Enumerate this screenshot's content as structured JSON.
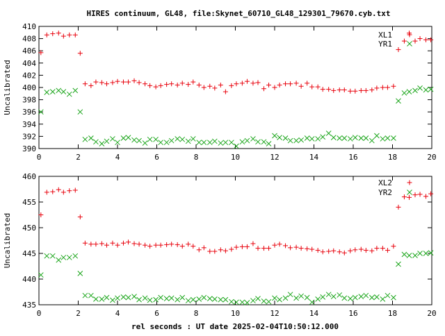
{
  "title": "HIRES continuum, GL48, file:Skynet_60710_GL48_129301_79670.cyb.txt",
  "xlabel": "rel seconds : UT date 2025-02-04T10:50:12.000",
  "colors": {
    "red": "#e8000b",
    "green": "#1aa51a",
    "axis": "#000000"
  },
  "chart_data": [
    {
      "type": "scatter",
      "ylabel": "Uncalibrated",
      "xlim": [
        0,
        20
      ],
      "ylim": [
        390,
        410
      ],
      "xticks": [
        0,
        2,
        4,
        6,
        8,
        10,
        12,
        14,
        16,
        18,
        20
      ],
      "yticks": [
        390,
        392,
        394,
        396,
        398,
        400,
        402,
        404,
        406,
        408,
        410
      ],
      "legend_position": "top-right",
      "series": [
        {
          "name": "XL1",
          "marker": "plus",
          "color": "#e8000b",
          "x": [
            0.1,
            0.4,
            0.7,
            1.0,
            1.25,
            1.55,
            1.85,
            2.1,
            2.35,
            2.65,
            2.9,
            3.2,
            3.45,
            3.75,
            4.0,
            4.3,
            4.55,
            4.85,
            5.1,
            5.4,
            5.65,
            5.95,
            6.2,
            6.5,
            6.75,
            7.05,
            7.3,
            7.6,
            7.85,
            8.15,
            8.4,
            8.7,
            8.95,
            9.25,
            9.5,
            9.8,
            10.05,
            10.35,
            10.6,
            10.9,
            11.15,
            11.45,
            11.7,
            12.0,
            12.25,
            12.55,
            12.8,
            13.1,
            13.35,
            13.65,
            13.9,
            14.2,
            14.45,
            14.75,
            15.0,
            15.3,
            15.55,
            15.85,
            16.1,
            16.4,
            16.65,
            16.95,
            17.2,
            17.5,
            17.75,
            18.05,
            18.3,
            18.6,
            18.85,
            19.15,
            19.4,
            19.7,
            19.95
          ],
          "y": [
            405.7,
            408.6,
            408.8,
            408.9,
            408.4,
            408.6,
            408.6,
            405.6,
            400.6,
            400.3,
            400.9,
            400.8,
            400.6,
            400.8,
            401.0,
            400.9,
            400.9,
            401.1,
            400.8,
            400.6,
            400.3,
            400.1,
            400.3,
            400.5,
            400.6,
            400.4,
            400.7,
            400.5,
            400.9,
            400.4,
            400.0,
            400.2,
            399.9,
            400.4,
            399.3,
            400.3,
            400.6,
            400.7,
            401.0,
            400.7,
            400.8,
            399.8,
            400.4,
            400.0,
            400.4,
            400.6,
            400.6,
            400.7,
            400.2,
            400.7,
            400.1,
            400.1,
            399.7,
            399.7,
            399.5,
            399.6,
            399.6,
            399.4,
            399.4,
            399.5,
            399.5,
            399.6,
            399.9,
            400.0,
            400.0,
            400.2,
            406.2,
            407.6,
            408.9,
            407.6,
            408.0,
            407.8,
            407.8
          ]
        },
        {
          "name": "YR1",
          "marker": "cross",
          "color": "#1aa51a",
          "x": [
            0.1,
            0.4,
            0.7,
            1.0,
            1.25,
            1.55,
            1.85,
            2.1,
            2.35,
            2.65,
            2.9,
            3.2,
            3.45,
            3.75,
            4.0,
            4.3,
            4.55,
            4.85,
            5.1,
            5.4,
            5.65,
            5.95,
            6.2,
            6.5,
            6.75,
            7.05,
            7.3,
            7.6,
            7.85,
            8.15,
            8.4,
            8.7,
            8.95,
            9.25,
            9.5,
            9.8,
            10.05,
            10.35,
            10.6,
            10.9,
            11.15,
            11.45,
            11.7,
            12.0,
            12.25,
            12.55,
            12.8,
            13.1,
            13.35,
            13.65,
            13.9,
            14.2,
            14.45,
            14.75,
            15.0,
            15.3,
            15.55,
            15.85,
            16.1,
            16.4,
            16.65,
            16.95,
            17.2,
            17.5,
            17.75,
            18.05,
            18.3,
            18.6,
            18.85,
            19.15,
            19.4,
            19.7,
            19.95
          ],
          "y": [
            396.0,
            399.2,
            399.3,
            399.5,
            399.3,
            398.9,
            399.5,
            396.0,
            391.5,
            391.7,
            391.1,
            390.8,
            391.2,
            391.6,
            391.0,
            391.7,
            391.8,
            391.4,
            391.3,
            390.9,
            391.5,
            391.5,
            391.0,
            391.0,
            391.3,
            391.6,
            391.5,
            391.2,
            391.6,
            391.0,
            391.0,
            391.0,
            391.2,
            390.9,
            391.0,
            391.0,
            390.4,
            391.1,
            391.3,
            391.6,
            391.1,
            391.1,
            390.8,
            392.1,
            391.8,
            391.7,
            391.3,
            391.3,
            391.4,
            391.7,
            391.6,
            391.6,
            391.9,
            392.5,
            391.8,
            391.7,
            391.7,
            391.6,
            391.8,
            391.7,
            391.7,
            391.3,
            392.1,
            391.6,
            391.7,
            391.7,
            397.8,
            399.1,
            399.3,
            399.5,
            399.9,
            399.6,
            399.7
          ]
        }
      ]
    },
    {
      "type": "scatter",
      "ylabel": "Uncalibrated",
      "xlim": [
        0,
        20
      ],
      "ylim": [
        435,
        460
      ],
      "xticks": [
        0,
        2,
        4,
        6,
        8,
        10,
        12,
        14,
        16,
        18,
        20
      ],
      "yticks": [
        435,
        440,
        445,
        450,
        455,
        460
      ],
      "legend_position": "top-right",
      "series": [
        {
          "name": "XL2",
          "marker": "plus",
          "color": "#e8000b",
          "x": [
            0.1,
            0.4,
            0.7,
            1.0,
            1.25,
            1.55,
            1.85,
            2.1,
            2.35,
            2.65,
            2.9,
            3.2,
            3.45,
            3.75,
            4.0,
            4.3,
            4.55,
            4.85,
            5.1,
            5.4,
            5.65,
            5.95,
            6.2,
            6.5,
            6.75,
            7.05,
            7.3,
            7.6,
            7.85,
            8.15,
            8.4,
            8.7,
            8.95,
            9.25,
            9.5,
            9.8,
            10.05,
            10.35,
            10.6,
            10.9,
            11.15,
            11.45,
            11.7,
            12.0,
            12.25,
            12.55,
            12.8,
            13.1,
            13.35,
            13.65,
            13.9,
            14.2,
            14.45,
            14.75,
            15.0,
            15.3,
            15.55,
            15.85,
            16.1,
            16.4,
            16.65,
            16.95,
            17.2,
            17.5,
            17.75,
            18.05,
            18.3,
            18.6,
            18.85,
            19.15,
            19.4,
            19.7,
            19.95
          ],
          "y": [
            452.5,
            456.9,
            457.0,
            457.4,
            456.9,
            457.2,
            457.3,
            452.1,
            447.0,
            446.8,
            446.8,
            446.9,
            446.6,
            447.0,
            446.6,
            447.0,
            447.2,
            446.9,
            446.8,
            446.6,
            446.4,
            446.6,
            446.6,
            446.7,
            446.8,
            446.7,
            446.4,
            446.8,
            446.4,
            445.7,
            446.1,
            445.4,
            445.4,
            445.7,
            445.5,
            445.8,
            446.2,
            446.3,
            446.3,
            446.9,
            446.0,
            446.0,
            446.0,
            446.6,
            446.8,
            446.5,
            446.1,
            446.2,
            446.0,
            445.9,
            445.8,
            445.6,
            445.3,
            445.4,
            445.5,
            445.3,
            445.1,
            445.5,
            445.7,
            445.8,
            445.6,
            445.5,
            446.0,
            446.0,
            445.6,
            446.4,
            454.0,
            456.0,
            455.9,
            456.4,
            456.5,
            456.1,
            456.6
          ]
        },
        {
          "name": "YR2",
          "marker": "cross",
          "color": "#1aa51a",
          "x": [
            0.1,
            0.4,
            0.7,
            1.0,
            1.25,
            1.55,
            1.85,
            2.1,
            2.35,
            2.65,
            2.9,
            3.2,
            3.45,
            3.75,
            4.0,
            4.3,
            4.55,
            4.85,
            5.1,
            5.4,
            5.65,
            5.95,
            6.2,
            6.5,
            6.75,
            7.05,
            7.3,
            7.6,
            7.85,
            8.15,
            8.4,
            8.7,
            8.95,
            9.25,
            9.5,
            9.8,
            10.05,
            10.35,
            10.6,
            10.9,
            11.15,
            11.45,
            11.7,
            12.0,
            12.25,
            12.55,
            12.8,
            13.1,
            13.35,
            13.65,
            13.9,
            14.2,
            14.45,
            14.75,
            15.0,
            15.3,
            15.55,
            15.85,
            16.1,
            16.4,
            16.65,
            16.95,
            17.2,
            17.5,
            17.75,
            18.05,
            18.3,
            18.6,
            18.85,
            19.15,
            19.4,
            19.7,
            19.95
          ],
          "y": [
            440.8,
            444.5,
            444.5,
            443.7,
            444.2,
            444.2,
            444.5,
            441.1,
            436.8,
            436.8,
            436.1,
            436.1,
            436.4,
            435.9,
            436.3,
            436.5,
            436.4,
            436.6,
            436.0,
            436.3,
            435.9,
            436.0,
            436.4,
            436.2,
            436.3,
            436.0,
            436.4,
            435.8,
            436.0,
            436.1,
            436.4,
            436.2,
            436.1,
            436.0,
            436.0,
            435.6,
            435.5,
            435.5,
            435.4,
            435.8,
            436.2,
            435.7,
            435.6,
            436.3,
            436.0,
            436.3,
            437.0,
            436.3,
            436.7,
            436.4,
            435.5,
            436.1,
            436.5,
            437.0,
            436.6,
            436.9,
            436.3,
            436.2,
            436.4,
            436.6,
            436.8,
            436.4,
            436.5,
            436.1,
            436.8,
            436.4,
            442.9,
            444.8,
            444.6,
            444.6,
            445.0,
            445.0,
            445.1
          ]
        }
      ]
    }
  ]
}
